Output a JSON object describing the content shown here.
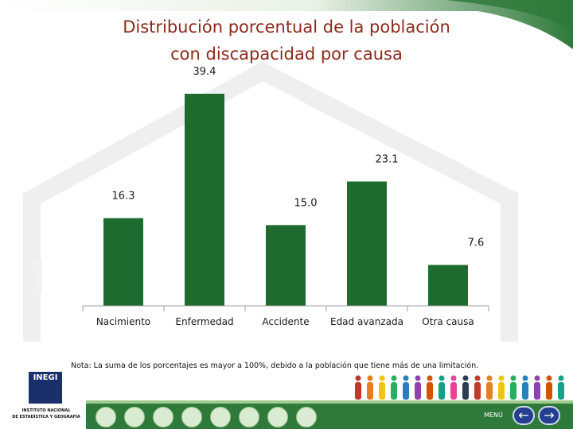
{
  "title_line1": "Distribución porcentual de la población",
  "title_line2": "con discapacidad por causa",
  "note": "Nota: La suma de los porcentajes es mayor a 100%, debido a la población que tiene más de una limitación.",
  "logo": {
    "text": "INEGI",
    "line1": "INSTITUTO NACIONAL",
    "line2": "DE ESTADÍSTICA Y GEOGRAFÍA"
  },
  "menu_label": "MENÚ",
  "colors": {
    "bar": "#1e6b30",
    "title": "#8b2a1c",
    "topbar": "#2f7a3b"
  },
  "icons": {
    "prev": "left-arrow-icon",
    "next": "right-arrow-icon"
  },
  "chart_data": {
    "type": "bar",
    "title": "Distribución porcentual de la población con discapacidad por causa",
    "categories": [
      "Nacimiento",
      "Enfermedad",
      "Accidente",
      "Edad avanzada",
      "Otra causa"
    ],
    "values": [
      16.3,
      39.4,
      15.0,
      23.1,
      7.6
    ],
    "value_labels": [
      "16.3",
      "39.4",
      "15.0",
      "23.1",
      "7.6"
    ],
    "ylim": [
      0,
      40
    ],
    "grid": false,
    "legend": "none"
  }
}
